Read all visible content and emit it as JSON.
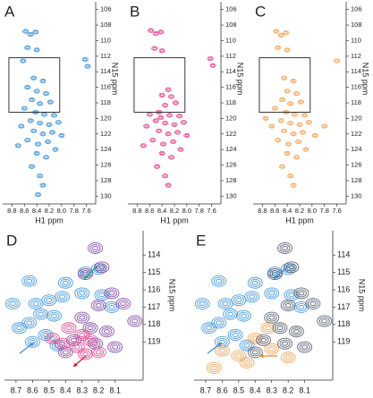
{
  "chart_data": [
    {
      "type": "scatter",
      "panel_label": "A",
      "xlabel": "H1 ppm",
      "ylabel": "N15 ppm",
      "xlim": [
        8.95,
        7.45
      ],
      "ylim": [
        105,
        131
      ],
      "xticks": [
        8.8,
        8.6,
        8.4,
        8.2,
        {
          "value": 8,
          "label": "8.0"
        },
        7.8,
        7.6
      ],
      "yticks": [
        106,
        108,
        110,
        112,
        114,
        116,
        118,
        120,
        122,
        124,
        126,
        128,
        130
      ],
      "zoom_box": {
        "x": [
          8.85,
          8.03
        ],
        "y": [
          112.2,
          119.2
        ]
      },
      "series": [
        {
          "color": "#3a8fd6",
          "x": [
            8.58,
            8.5,
            8.42,
            8.55,
            8.4,
            8.62,
            7.62,
            7.58,
            8.45,
            8.3,
            8.55,
            8.4,
            8.25,
            8.48,
            8.35,
            8.18,
            8.6,
            8.42,
            8.28,
            8.12,
            8.5,
            8.35,
            8.2,
            8.05,
            8.65,
            8.45,
            8.3,
            8.15,
            8.0,
            8.55,
            8.38,
            8.22,
            8.4,
            8.25,
            8.48,
            8.35,
            8.3,
            8.38,
            8.1,
            8.7
          ],
          "values": [
            108.8,
            109.2,
            108.9,
            110.9,
            111.2,
            112.6,
            112.4,
            113.3,
            114.8,
            115.2,
            116.0,
            116.5,
            116.8,
            117.6,
            118.1,
            117.9,
            118.7,
            119.2,
            119.5,
            119.6,
            120.3,
            120.6,
            120.8,
            120.5,
            121.0,
            121.6,
            122.0,
            121.8,
            122.2,
            122.8,
            123.3,
            123.0,
            124.5,
            125.0,
            126.2,
            127.4,
            128.6,
            129.8,
            124.0,
            123.5
          ]
        }
      ]
    },
    {
      "type": "scatter",
      "panel_label": "B",
      "xlabel": "H1 ppm",
      "ylabel": "N15 ppm",
      "xlim": [
        8.95,
        7.45
      ],
      "ylim": [
        105,
        131
      ],
      "xticks": [
        8.8,
        8.6,
        8.4,
        8.2,
        {
          "value": 8,
          "label": "8.0"
        },
        7.8,
        7.6
      ],
      "yticks": [
        106,
        108,
        110,
        112,
        114,
        116,
        118,
        120,
        122,
        124,
        126,
        128,
        130
      ],
      "zoom_box": {
        "x": [
          8.85,
          8.03
        ],
        "y": [
          112.2,
          119.2
        ]
      },
      "series": [
        {
          "color": "#e0408a",
          "x": [
            8.58,
            8.5,
            8.42,
            8.52,
            8.4,
            7.62,
            7.58,
            8.3,
            8.4,
            8.25,
            8.35,
            8.18,
            8.6,
            8.42,
            8.28,
            8.12,
            8.5,
            8.35,
            8.2,
            8.05,
            8.65,
            8.45,
            8.3,
            8.15,
            8.0,
            8.55,
            8.38,
            8.22,
            8.4,
            8.25,
            8.48,
            8.35,
            8.3,
            8.1,
            8.7,
            8.45
          ],
          "values": [
            108.7,
            109.1,
            108.9,
            111.0,
            111.3,
            112.3,
            113.2,
            116.3,
            117.0,
            117.2,
            118.3,
            118.0,
            119.5,
            119.9,
            119.6,
            119.7,
            120.3,
            120.6,
            120.8,
            120.5,
            121.0,
            121.6,
            122.0,
            121.8,
            122.2,
            122.8,
            123.3,
            123.0,
            124.5,
            125.0,
            126.2,
            127.4,
            128.6,
            124.0,
            123.5,
            119.2
          ]
        }
      ]
    },
    {
      "type": "scatter",
      "panel_label": "C",
      "xlabel": "H1 ppm",
      "ylabel": "N15 ppm",
      "xlim": [
        8.95,
        7.45
      ],
      "ylim": [
        105,
        131
      ],
      "xticks": [
        8.8,
        8.6,
        8.4,
        8.2,
        {
          "value": 8,
          "label": "8.0"
        },
        7.8,
        7.6
      ],
      "yticks": [
        106,
        108,
        110,
        112,
        114,
        116,
        118,
        120,
        122,
        124,
        126,
        128,
        130
      ],
      "zoom_box": {
        "x": [
          8.85,
          8.03
        ],
        "y": [
          112.2,
          119.2
        ]
      },
      "series": [
        {
          "color": "#f0a050",
          "x": [
            8.58,
            8.5,
            8.42,
            8.55,
            8.4,
            7.6,
            8.45,
            8.3,
            8.4,
            8.25,
            8.48,
            8.35,
            8.18,
            8.6,
            8.42,
            8.28,
            8.12,
            8.5,
            8.35,
            8.2,
            8.05,
            8.65,
            8.45,
            8.3,
            8.15,
            7.95,
            8.55,
            8.38,
            8.22,
            8.4,
            8.25,
            8.48,
            8.35,
            8.3,
            8.1,
            8.75,
            7.8
          ],
          "values": [
            108.8,
            109.3,
            109.0,
            110.9,
            111.2,
            112.6,
            114.8,
            115.2,
            116.5,
            116.8,
            117.6,
            118.1,
            117.9,
            118.7,
            119.2,
            119.5,
            119.6,
            120.3,
            120.6,
            120.8,
            120.5,
            121.0,
            121.6,
            122.0,
            121.8,
            122.2,
            122.8,
            123.3,
            123.0,
            124.5,
            125.0,
            126.2,
            127.4,
            128.6,
            124.0,
            120.0,
            121.0
          ]
        }
      ]
    },
    {
      "type": "scatter",
      "panel_label": "D",
      "ylabel": "N15 ppm",
      "xlim": [
        8.77,
        7.93
      ],
      "ylim": [
        112.6,
        121.2
      ],
      "xticks": [
        8.7,
        8.6,
        8.5,
        8.4,
        8.3,
        8.2,
        8.1
      ],
      "yticks": [
        114,
        115,
        116,
        117,
        118,
        119
      ],
      "series": [
        {
          "color": "#3a8fd6",
          "x": [
            8.62,
            8.58,
            8.5,
            8.42,
            8.55,
            8.47,
            8.62,
            8.68,
            8.52,
            8.4,
            8.3,
            8.28,
            8.72,
            8.6,
            8.45,
            8.2,
            8.18,
            8.12
          ],
          "values": [
            115.5,
            116.8,
            116.6,
            116.4,
            117.4,
            117.5,
            117.9,
            118.2,
            118.6,
            115.6,
            116.2,
            115.0,
            116.8,
            119.0,
            119.2,
            114.8,
            116.3,
            117.0
          ]
        },
        {
          "color": "#7a3fa0",
          "x": [
            8.22,
            8.18,
            8.28,
            8.12,
            8.2,
            8.05,
            8.3,
            8.25,
            8.15,
            8.35,
            8.22,
            8.1,
            8.4,
            7.98
          ],
          "values": [
            113.6,
            114.7,
            115.1,
            116.2,
            116.9,
            116.8,
            117.6,
            118.2,
            118.4,
            118.9,
            119.1,
            119.3,
            119.6,
            117.8
          ]
        },
        {
          "color": "#e0408a",
          "x": [
            8.38,
            8.3,
            8.42,
            8.33,
            8.28,
            8.2,
            8.48,
            8.25
          ],
          "values": [
            118.2,
            118.6,
            119.1,
            119.3,
            119.7,
            119.6,
            118.8,
            118.9
          ]
        }
      ]
    },
    {
      "type": "scatter",
      "panel_label": "E",
      "ylabel": "N15 ppm",
      "xlim": [
        8.77,
        7.93
      ],
      "ylim": [
        112.6,
        121.2
      ],
      "xticks": [
        8.7,
        8.6,
        8.5,
        8.4,
        8.3,
        8.2,
        8.1
      ],
      "yticks": [
        114,
        115,
        116,
        117,
        118,
        119
      ],
      "series": [
        {
          "color": "#3a8fd6",
          "x": [
            8.62,
            8.58,
            8.5,
            8.42,
            8.55,
            8.47,
            8.62,
            8.68,
            8.52,
            8.4,
            8.3,
            8.28,
            8.72,
            8.6,
            8.45,
            8.2,
            8.18,
            8.12
          ],
          "values": [
            115.5,
            116.8,
            116.6,
            116.4,
            117.4,
            117.5,
            117.9,
            118.2,
            118.6,
            115.6,
            116.2,
            115.0,
            116.8,
            119.0,
            119.2,
            114.8,
            116.3,
            117.0
          ]
        },
        {
          "color": "#f0a050",
          "x": [
            8.32,
            8.4,
            8.3,
            8.6,
            8.5,
            8.2,
            8.65,
            8.45
          ],
          "values": [
            118.2,
            118.8,
            119.4,
            119.5,
            119.8,
            119.9,
            120.5,
            120.2
          ]
        },
        {
          "color": "#4a5568",
          "x": [
            8.22,
            8.18,
            8.28,
            8.12,
            8.2,
            8.05,
            8.3,
            8.25,
            8.15,
            8.35,
            8.22,
            8.1,
            8.4,
            7.98
          ],
          "values": [
            113.6,
            114.7,
            115.1,
            116.2,
            116.9,
            116.8,
            117.6,
            118.2,
            118.4,
            118.9,
            119.1,
            119.3,
            119.6,
            117.8
          ]
        }
      ]
    }
  ]
}
